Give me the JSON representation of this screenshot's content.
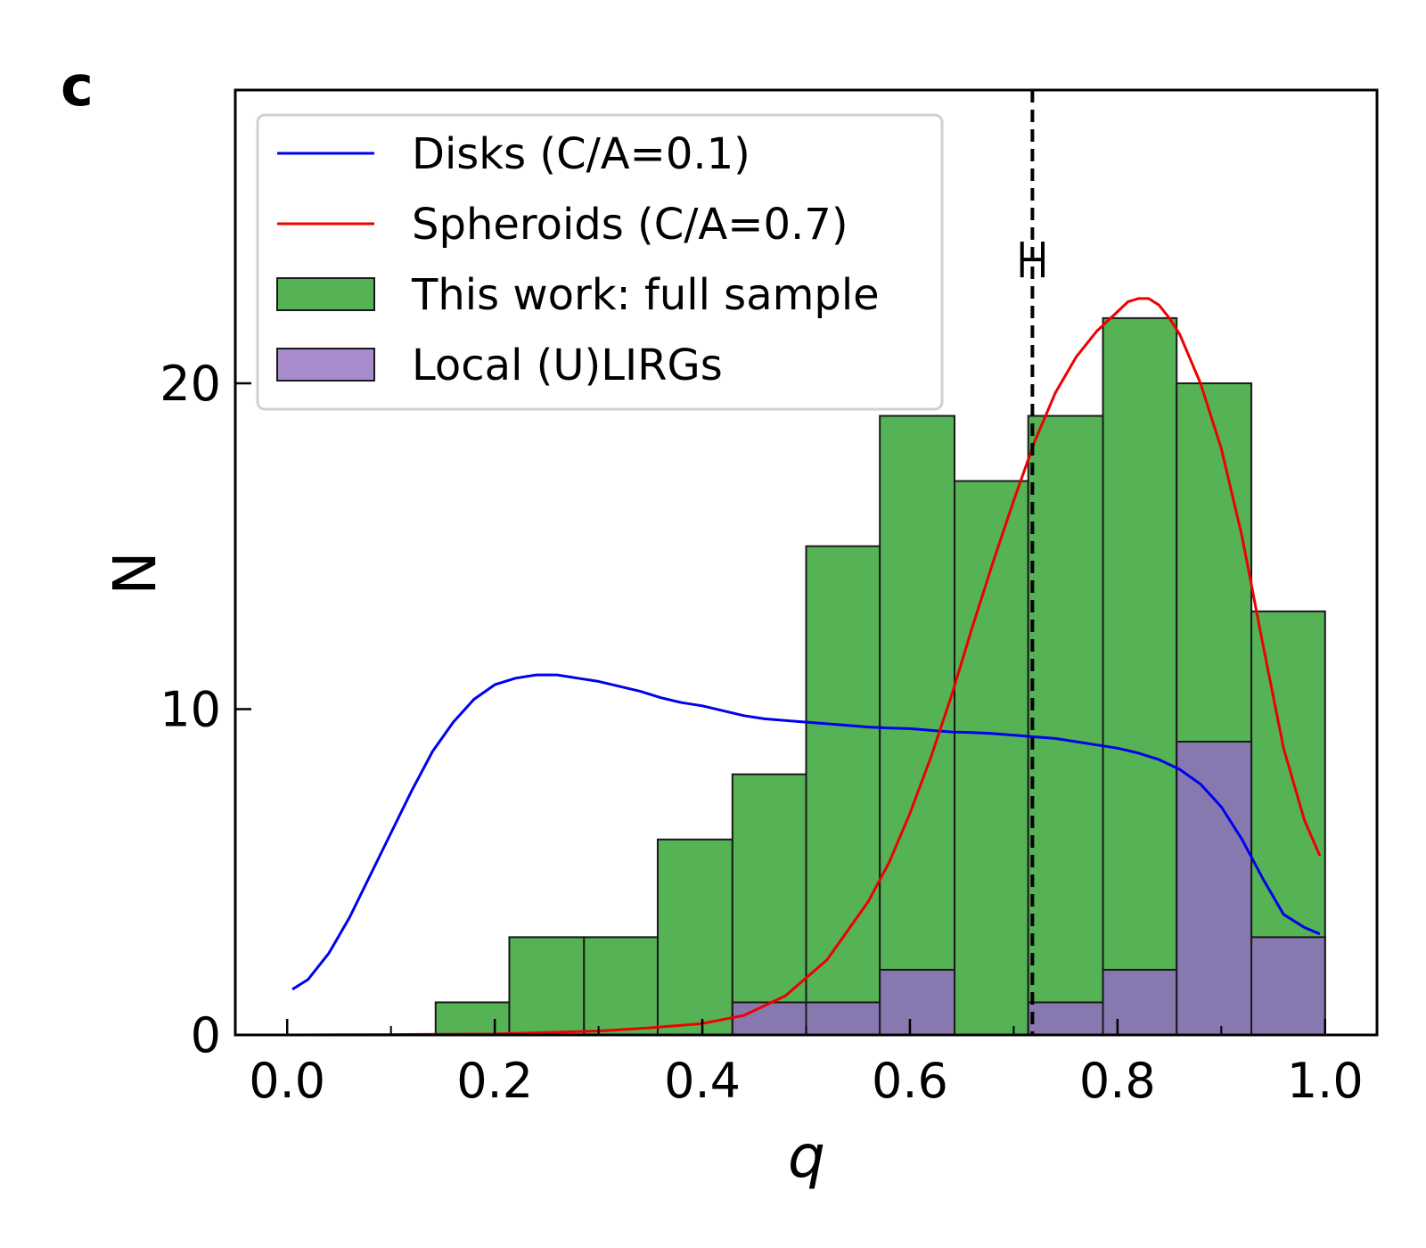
{
  "panel_label": "c",
  "chart_data": {
    "type": "bar",
    "xlabel": "q",
    "ylabel": "N",
    "xlim": [
      -0.05,
      1.05
    ],
    "ylim": [
      0,
      29
    ],
    "x_ticks": [
      0.0,
      0.2,
      0.4,
      0.6,
      0.8,
      1.0
    ],
    "x_tick_labels": [
      "0.0",
      "0.2",
      "0.4",
      "0.6",
      "0.8",
      "1.0"
    ],
    "x_minor_ticks": [
      0.1,
      0.3,
      0.5,
      0.7,
      0.9
    ],
    "y_ticks": [
      0,
      10,
      20
    ],
    "y_tick_labels": [
      "0",
      "10",
      "20"
    ],
    "grid": false,
    "legend_position": "top-left",
    "bin_edges": [
      0.143,
      0.214,
      0.286,
      0.357,
      0.429,
      0.5,
      0.571,
      0.643,
      0.714,
      0.786,
      0.857,
      0.929,
      1.0
    ],
    "histograms": [
      {
        "name": "This work: full sample",
        "color": "#55b355",
        "counts": [
          1,
          3,
          3,
          6,
          8,
          15,
          19,
          17,
          19,
          22,
          20,
          13
        ]
      },
      {
        "name": "Local (U)LIRGs",
        "color": "#8878b0",
        "legend_color": "#a88bcc",
        "counts": [
          0,
          0,
          0,
          0,
          1,
          1,
          2,
          0,
          1,
          2,
          9,
          3
        ]
      }
    ],
    "series": [
      {
        "name": "Disks (C/A=0.1)",
        "color": "#0000ee",
        "x": [
          0.005,
          0.02,
          0.04,
          0.06,
          0.08,
          0.1,
          0.12,
          0.14,
          0.16,
          0.18,
          0.2,
          0.22,
          0.24,
          0.26,
          0.28,
          0.3,
          0.32,
          0.34,
          0.36,
          0.38,
          0.4,
          0.42,
          0.44,
          0.46,
          0.48,
          0.5,
          0.52,
          0.54,
          0.56,
          0.58,
          0.6,
          0.62,
          0.64,
          0.66,
          0.68,
          0.7,
          0.72,
          0.74,
          0.76,
          0.78,
          0.8,
          0.82,
          0.84,
          0.86,
          0.88,
          0.9,
          0.92,
          0.94,
          0.96,
          0.98,
          0.995
        ],
        "y": [
          1.4,
          1.7,
          2.5,
          3.6,
          4.9,
          6.2,
          7.5,
          8.7,
          9.6,
          10.3,
          10.75,
          10.95,
          11.05,
          11.05,
          10.95,
          10.85,
          10.7,
          10.55,
          10.35,
          10.2,
          10.1,
          9.95,
          9.8,
          9.7,
          9.65,
          9.6,
          9.55,
          9.5,
          9.45,
          9.42,
          9.4,
          9.35,
          9.3,
          9.28,
          9.25,
          9.2,
          9.15,
          9.1,
          9.0,
          8.9,
          8.8,
          8.65,
          8.45,
          8.15,
          7.7,
          7.0,
          6.0,
          4.8,
          3.7,
          3.3,
          3.1
        ]
      },
      {
        "name": "Spheroids (C/A=0.7)",
        "color": "#ee0000",
        "x": [
          0.0,
          0.1,
          0.2,
          0.3,
          0.35,
          0.4,
          0.44,
          0.48,
          0.52,
          0.56,
          0.58,
          0.6,
          0.62,
          0.64,
          0.66,
          0.68,
          0.7,
          0.72,
          0.74,
          0.76,
          0.78,
          0.8,
          0.81,
          0.82,
          0.83,
          0.84,
          0.85,
          0.86,
          0.88,
          0.9,
          0.92,
          0.94,
          0.96,
          0.98,
          0.995
        ],
        "y": [
          0.0,
          0.01,
          0.03,
          0.12,
          0.22,
          0.35,
          0.6,
          1.2,
          2.3,
          4.1,
          5.3,
          6.8,
          8.5,
          10.4,
          12.5,
          14.5,
          16.4,
          18.2,
          19.7,
          20.8,
          21.6,
          22.2,
          22.5,
          22.6,
          22.6,
          22.4,
          22.0,
          21.5,
          20.0,
          18.0,
          15.3,
          12.0,
          8.8,
          6.6,
          5.5
        ]
      }
    ],
    "vline": {
      "x": 0.718,
      "style": "dashed",
      "color": "#000000"
    },
    "errorbar": {
      "x": 0.718,
      "y": 23.8,
      "xerr": 0.01
    }
  }
}
